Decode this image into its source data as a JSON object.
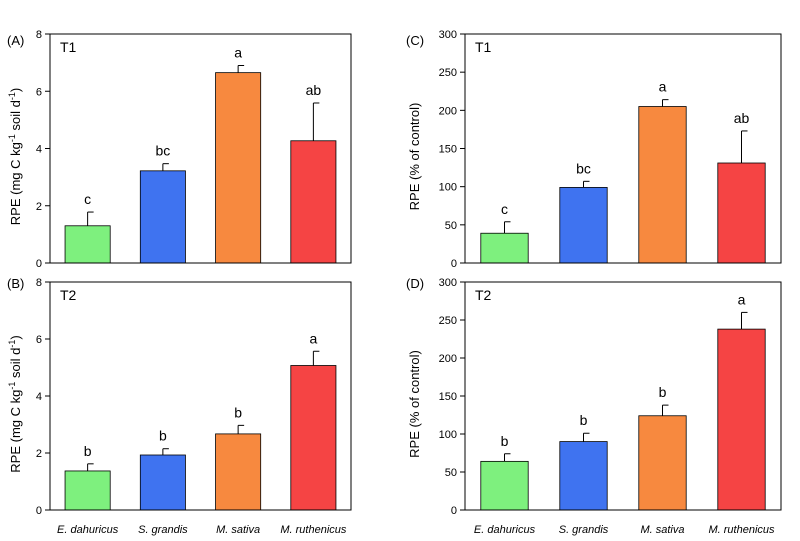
{
  "chart_data": [
    {
      "type": "bar",
      "panel": "(A)",
      "treatment": "T1",
      "ylabel": "RPE (mg C kg-1 soil d-1)",
      "ylim": [
        0,
        8
      ],
      "yticks": [
        0,
        2,
        4,
        6,
        8
      ],
      "categories": [
        "E. dahuricus",
        "S. grandis",
        "M. sativa",
        "M. ruthenicus"
      ],
      "show_categories": false,
      "values": [
        1.3,
        3.22,
        6.65,
        4.27
      ],
      "errors": [
        0.48,
        0.25,
        0.25,
        1.32
      ],
      "letters": [
        "c",
        "bc",
        "a",
        "ab"
      ],
      "colors": [
        "#7ef07e",
        "#3f73f0",
        "#f7893f",
        "#f54444"
      ],
      "grid": false
    },
    {
      "type": "bar",
      "panel": "(B)",
      "treatment": "T2",
      "ylabel": "RPE (mg C kg-1 soil d-1)",
      "ylim": [
        0,
        8
      ],
      "yticks": [
        0,
        2,
        4,
        6,
        8
      ],
      "categories": [
        "E. dahuricus",
        "S. grandis",
        "M. sativa",
        "M. ruthenicus"
      ],
      "show_categories": true,
      "values": [
        1.37,
        1.93,
        2.67,
        5.07
      ],
      "errors": [
        0.25,
        0.22,
        0.3,
        0.5
      ],
      "letters": [
        "b",
        "b",
        "b",
        "a"
      ],
      "colors": [
        "#7ef07e",
        "#3f73f0",
        "#f7893f",
        "#f54444"
      ],
      "grid": false
    },
    {
      "type": "bar",
      "panel": "(C)",
      "treatment": "T1",
      "ylabel": "RPE (% of control)",
      "ylim": [
        0,
        300
      ],
      "yticks": [
        0,
        50,
        100,
        150,
        200,
        250,
        300
      ],
      "categories": [
        "E. dahuricus",
        "S. grandis",
        "M. sativa",
        "M. ruthenicus"
      ],
      "show_categories": false,
      "values": [
        39,
        99,
        205,
        131
      ],
      "errors": [
        15,
        8,
        9,
        42
      ],
      "letters": [
        "c",
        "bc",
        "a",
        "ab"
      ],
      "colors": [
        "#7ef07e",
        "#3f73f0",
        "#f7893f",
        "#f54444"
      ],
      "grid": false
    },
    {
      "type": "bar",
      "panel": "(D)",
      "treatment": "T2",
      "ylabel": "RPE (% of control)",
      "ylim": [
        0,
        300
      ],
      "yticks": [
        0,
        50,
        100,
        150,
        200,
        250,
        300
      ],
      "categories": [
        "E. dahuricus",
        "S. grandis",
        "M. sativa",
        "M. ruthenicus"
      ],
      "show_categories": true,
      "values": [
        64,
        90,
        124,
        238
      ],
      "errors": [
        10,
        11,
        14,
        22
      ],
      "letters": [
        "b",
        "b",
        "b",
        "a"
      ],
      "colors": [
        "#7ef07e",
        "#3f73f0",
        "#f7893f",
        "#f54444"
      ],
      "grid": false
    }
  ]
}
